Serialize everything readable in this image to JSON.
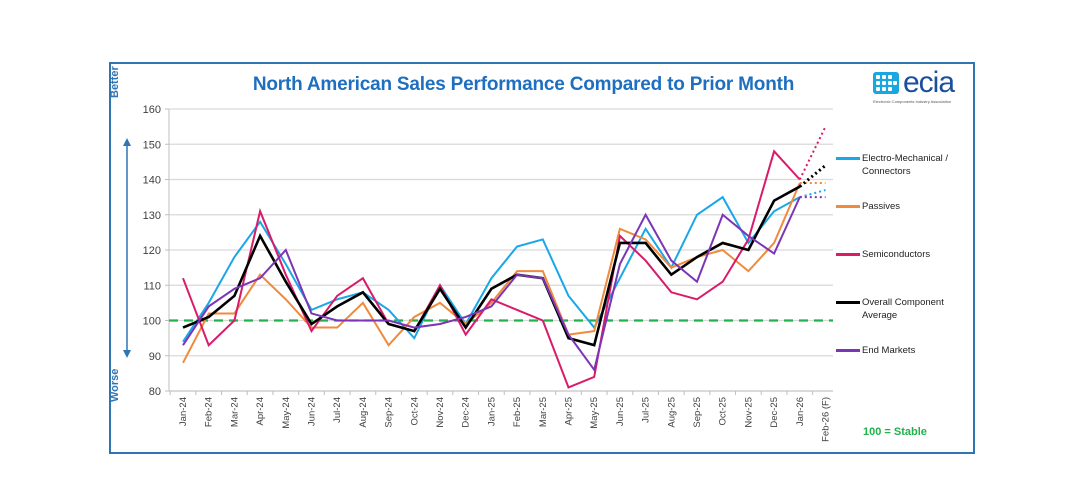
{
  "chart_data": {
    "type": "line",
    "title": "North American Sales Performance Compared to Prior Month",
    "xlabel": "",
    "ylabel": "",
    "y_annotation_top": "Better",
    "y_annotation_bottom": "Worse",
    "ylim": [
      80,
      160
    ],
    "yticks": [
      80,
      90,
      100,
      110,
      120,
      130,
      140,
      150,
      160
    ],
    "grid": true,
    "legend_position": "right",
    "reference_line": {
      "value": 100,
      "label": "100 = Stable",
      "color": "#22b14c",
      "style": "dashed"
    },
    "forecast_category": "Feb-26 (F)",
    "categories": [
      "Jan-24",
      "Feb-24",
      "Mar-24",
      "Apr-24",
      "May-24",
      "Jun-24",
      "Jul-24",
      "Aug-24",
      "Sep-24",
      "Oct-24",
      "Nov-24",
      "Dec-24",
      "Jan-25",
      "Feb-25",
      "Mar-25",
      "Apr-25",
      "May-25",
      "Jun-25",
      "Jul-25",
      "Aug-25",
      "Sep-25",
      "Oct-25",
      "Nov-25",
      "Dec-25",
      "Jan-26",
      "Feb-26 (F)"
    ],
    "series": [
      {
        "name": "Electro-Mechanical / Connectors",
        "color": "#1aa7e8",
        "values": [
          94,
          105,
          118,
          128,
          116,
          103,
          106,
          108,
          103,
          95,
          110,
          99,
          112,
          121,
          123,
          107,
          98,
          112,
          126,
          115,
          130,
          135,
          122,
          131,
          135,
          137
        ]
      },
      {
        "name": "Passives",
        "color": "#f08a3c",
        "values": [
          88,
          102,
          102,
          113,
          106,
          98,
          98,
          105,
          93,
          101,
          105,
          99,
          105,
          114,
          114,
          96,
          97,
          126,
          123,
          115,
          118,
          120,
          114,
          122,
          139,
          139
        ]
      },
      {
        "name": "Semiconductors",
        "color": "#d81b6a",
        "values": [
          112,
          93,
          100,
          131,
          113,
          97,
          107,
          112,
          99,
          97,
          110,
          96,
          106,
          103,
          100,
          81,
          84,
          124,
          117,
          108,
          106,
          111,
          123,
          148,
          140,
          155
        ]
      },
      {
        "name": "Overall Component Average",
        "color": "#000000",
        "values": [
          98,
          101,
          107,
          124,
          111,
          99,
          104,
          108,
          99,
          97,
          109,
          98,
          109,
          113,
          112,
          95,
          93,
          122,
          122,
          113,
          118,
          122,
          120,
          134,
          138,
          144
        ]
      },
      {
        "name": "End Markets",
        "color": "#7b35b5",
        "values": [
          93,
          104,
          109,
          112,
          120,
          102,
          100,
          100,
          100,
          98,
          99,
          101,
          104,
          113,
          112,
          96,
          86,
          116,
          130,
          117,
          111,
          130,
          124,
          119,
          135,
          135
        ]
      }
    ]
  },
  "legend": [
    {
      "label": "Electro-Mechanical / Connectors",
      "color": "#1aa7e8"
    },
    {
      "label": "Passives",
      "color": "#f08a3c"
    },
    {
      "label": "Semiconductors",
      "color": "#d81b6a"
    },
    {
      "label": "Overall Component Average",
      "color": "#000000"
    },
    {
      "label": "End Markets",
      "color": "#7b35b5"
    }
  ],
  "logo": {
    "name": "ecia",
    "subtitle": "Electronic Components Industry Association"
  },
  "stable_note": "100 = Stable"
}
